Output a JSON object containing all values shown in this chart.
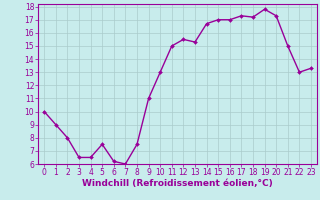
{
  "x": [
    0,
    1,
    2,
    3,
    4,
    5,
    6,
    7,
    8,
    9,
    10,
    11,
    12,
    13,
    14,
    15,
    16,
    17,
    18,
    19,
    20,
    21,
    22,
    23
  ],
  "y": [
    10.0,
    9.0,
    8.0,
    6.5,
    6.5,
    7.5,
    6.2,
    6.0,
    7.5,
    11.0,
    13.0,
    15.0,
    15.5,
    15.3,
    16.7,
    17.0,
    17.0,
    17.3,
    17.2,
    17.8,
    17.3,
    15.0,
    13.0,
    13.3
  ],
  "line_color": "#990099",
  "marker": "D",
  "markersize": 2,
  "linewidth": 1.0,
  "bg_color": "#c8ecec",
  "grid_color": "#aacccc",
  "xlabel": "Windchill (Refroidissement éolien,°C)",
  "ylabel": "",
  "ylim": [
    6,
    18
  ],
  "xlim": [
    -0.5,
    23.5
  ],
  "yticks": [
    6,
    7,
    8,
    9,
    10,
    11,
    12,
    13,
    14,
    15,
    16,
    17,
    18
  ],
  "xticks": [
    0,
    1,
    2,
    3,
    4,
    5,
    6,
    7,
    8,
    9,
    10,
    11,
    12,
    13,
    14,
    15,
    16,
    17,
    18,
    19,
    20,
    21,
    22,
    23
  ],
  "tick_color": "#990099",
  "label_color": "#990099",
  "xlabel_fontsize": 6.5,
  "tick_fontsize": 5.5
}
